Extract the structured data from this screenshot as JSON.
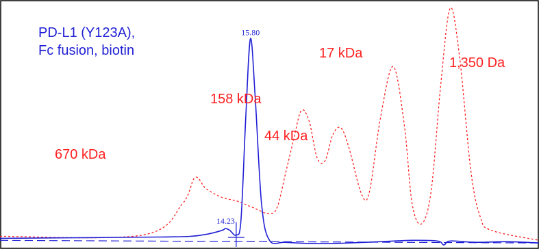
{
  "chart_data": {
    "type": "line",
    "series": [
      {
        "name": "PD-L1 (Y123A), Fc fusion, biotin",
        "color": "#1f1fd6",
        "dashed": false,
        "points": [
          [
            0,
            8
          ],
          [
            5,
            9
          ],
          [
            10,
            10
          ],
          [
            12,
            11
          ],
          [
            13,
            14
          ],
          [
            14,
            20
          ],
          [
            14.23,
            23
          ],
          [
            14.5,
            20
          ],
          [
            14.9,
            13
          ],
          [
            15.2,
            35
          ],
          [
            15.5,
            190
          ],
          [
            15.8,
            310
          ],
          [
            16.1,
            220
          ],
          [
            16.5,
            60
          ],
          [
            17,
            5
          ],
          [
            18,
            2
          ],
          [
            20,
            0
          ],
          [
            22,
            1
          ],
          [
            24,
            3
          ],
          [
            26,
            5
          ],
          [
            27.6,
            4
          ],
          [
            28,
            -2
          ],
          [
            28.4,
            4
          ],
          [
            30,
            2
          ],
          [
            32,
            3
          ],
          [
            34,
            1
          ]
        ]
      },
      {
        "name": "",
        "color": "#ff1f1f",
        "dashed": true,
        "points": [
          [
            0,
            11
          ],
          [
            9,
            13
          ],
          [
            11.5,
            60
          ],
          [
            12.3,
            100
          ],
          [
            13,
            83
          ],
          [
            14,
            70
          ],
          [
            15,
            64
          ],
          [
            16,
            54
          ],
          [
            17,
            45
          ],
          [
            17.5,
            56
          ],
          [
            18,
            105
          ],
          [
            18.5,
            155
          ],
          [
            19,
            201
          ],
          [
            19.5,
            185
          ],
          [
            20,
            130
          ],
          [
            20.5,
            125
          ],
          [
            21,
            165
          ],
          [
            21.5,
            175
          ],
          [
            22,
            146
          ],
          [
            22.8,
            75
          ],
          [
            23.3,
            78
          ],
          [
            24,
            190
          ],
          [
            24.8,
            268
          ],
          [
            25.5,
            180
          ],
          [
            26,
            60
          ],
          [
            26.6,
            30
          ],
          [
            27.2,
            80
          ],
          [
            27.8,
            240
          ],
          [
            28.4,
            356
          ],
          [
            29,
            280
          ],
          [
            29.7,
            110
          ],
          [
            30.3,
            40
          ],
          [
            31,
            20
          ],
          [
            34,
            5
          ]
        ]
      }
    ],
    "xlim": [
      0,
      34
    ],
    "ylim": [
      -5,
      360
    ],
    "baseline": {
      "color": "#1f1fd6",
      "points": [
        [
          0,
          5
        ],
        [
          34,
          1
        ]
      ]
    },
    "peak_labels": [
      {
        "text": "15.80",
        "x": 15.8,
        "y": 315,
        "color": "#1f1fd6"
      },
      {
        "text": "14.23",
        "x": 14.23,
        "y": 30,
        "color": "#1f1fd6"
      }
    ],
    "marker": {
      "x": 14.9,
      "color": "#1f1fd6"
    },
    "annotations": [
      {
        "text": "PD-L1 (Y123A),",
        "color": "#1f1fd6"
      },
      {
        "text": "Fc fusion, biotin",
        "color": "#1f1fd6"
      },
      {
        "text": "670 kDa",
        "color": "#ff1f1f"
      },
      {
        "text": "158 kDa",
        "color": "#ff1f1f"
      },
      {
        "text": "44 kDa",
        "color": "#ff1f1f"
      },
      {
        "text": "17 kDa",
        "color": "#ff1f1f"
      },
      {
        "text": "1,350 Da",
        "color": "#ff1f1f"
      }
    ],
    "grid": false,
    "title": "",
    "xlabel": "",
    "ylabel": ""
  }
}
